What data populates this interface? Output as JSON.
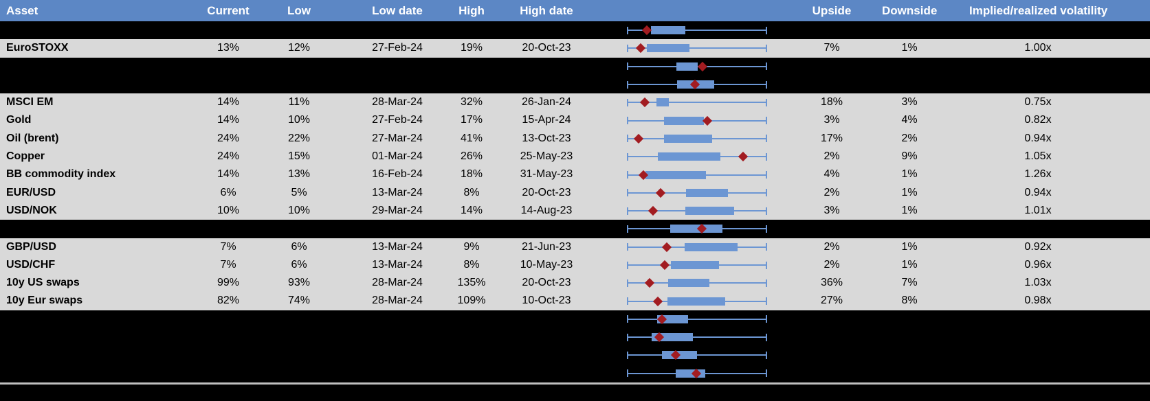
{
  "header": {
    "columns": [
      "Asset",
      "Current",
      "Low",
      "Low date",
      "High",
      "High date",
      "Upside",
      "Downside",
      "Implied/realized volatility"
    ]
  },
  "colors": {
    "header_bg": "#5c87c5",
    "header_text": "#ffffff",
    "row_light_bg": "#d9d9d9",
    "row_dark_bg": "#000000",
    "body_text": "#000000",
    "box_blue": "#6c96d3",
    "marker_red": "#a21c21",
    "divider_gray": "#bfbfbf"
  },
  "chart_data": {
    "type": "table",
    "columns": [
      "Asset",
      "Current",
      "Low",
      "Low date",
      "High",
      "High date",
      "Boxplot",
      "Upside",
      "Downside",
      "Implied/realized volatility"
    ],
    "boxplot_units": "percent of whisker span (left cap = 0, right cap = 100); marker is the red diamond position",
    "rows": [
      {
        "kind": "spacer",
        "asset": "",
        "current": "",
        "low": "",
        "low_date": "",
        "high": "",
        "high_date": "",
        "upside": "",
        "downside": "",
        "implied_realized": "",
        "box": {
          "whisker_lo_pct": 0,
          "box_lo_pct": 17.2,
          "box_hi_pct": 41.7,
          "whisker_hi_pct": 100,
          "marker_pct": 14.2
        }
      },
      {
        "kind": "data",
        "asset": "EuroSTOXX",
        "current": "13%",
        "low": "12%",
        "low_date": "27-Feb-24",
        "high": "19%",
        "high_date": "20-Oct-23",
        "upside": "7%",
        "downside": "1%",
        "implied_realized": "1.00x",
        "box": {
          "whisker_lo_pct": 0,
          "box_lo_pct": 14.2,
          "box_hi_pct": 44.6,
          "whisker_hi_pct": 100,
          "marker_pct": 9.8
        }
      },
      {
        "kind": "spacer",
        "asset": "",
        "current": "",
        "low": "",
        "low_date": "",
        "high": "",
        "high_date": "",
        "upside": "",
        "downside": "",
        "implied_realized": "",
        "box": {
          "whisker_lo_pct": 0,
          "box_lo_pct": 35.3,
          "box_hi_pct": 50.5,
          "whisker_hi_pct": 100,
          "marker_pct": 53.9
        }
      },
      {
        "kind": "spacer",
        "asset": "",
        "current": "",
        "low": "",
        "low_date": "",
        "high": "",
        "high_date": "",
        "upside": "",
        "downside": "",
        "implied_realized": "",
        "box": {
          "whisker_lo_pct": 0,
          "box_lo_pct": 35.8,
          "box_hi_pct": 62.3,
          "whisker_hi_pct": 100,
          "marker_pct": 48.5
        }
      },
      {
        "kind": "data",
        "asset": "MSCI EM",
        "current": "14%",
        "low": "11%",
        "low_date": "28-Mar-24",
        "high": "32%",
        "high_date": "26-Jan-24",
        "upside": "18%",
        "downside": "3%",
        "implied_realized": "0.75x",
        "box": {
          "whisker_lo_pct": 0,
          "box_lo_pct": 21.1,
          "box_hi_pct": 29.9,
          "whisker_hi_pct": 100,
          "marker_pct": 12.7
        }
      },
      {
        "kind": "data",
        "asset": "Gold",
        "current": "14%",
        "low": "10%",
        "low_date": "27-Feb-24",
        "high": "17%",
        "high_date": "15-Apr-24",
        "upside": "3%",
        "downside": "4%",
        "implied_realized": "0.82x",
        "box": {
          "whisker_lo_pct": 0,
          "box_lo_pct": 26.5,
          "box_hi_pct": 54.9,
          "whisker_hi_pct": 100,
          "marker_pct": 57.4
        }
      },
      {
        "kind": "data",
        "asset": "Oil (brent)",
        "current": "24%",
        "low": "22%",
        "low_date": "27-Mar-24",
        "high": "41%",
        "high_date": "13-Oct-23",
        "upside": "17%",
        "downside": "2%",
        "implied_realized": "0.94x",
        "box": {
          "whisker_lo_pct": 0,
          "box_lo_pct": 26.5,
          "box_hi_pct": 60.8,
          "whisker_hi_pct": 100,
          "marker_pct": 8.3
        }
      },
      {
        "kind": "data",
        "asset": "Copper",
        "current": "24%",
        "low": "15%",
        "low_date": "01-Mar-24",
        "high": "26%",
        "high_date": "25-May-23",
        "upside": "2%",
        "downside": "9%",
        "implied_realized": "1.05x",
        "box": {
          "whisker_lo_pct": 0,
          "box_lo_pct": 22.1,
          "box_hi_pct": 66.7,
          "whisker_hi_pct": 100,
          "marker_pct": 82.8
        }
      },
      {
        "kind": "data",
        "asset": "BB commodity index",
        "current": "14%",
        "low": "13%",
        "low_date": "16-Feb-24",
        "high": "18%",
        "high_date": "31-May-23",
        "upside": "4%",
        "downside": "1%",
        "implied_realized": "1.26x",
        "box": {
          "whisker_lo_pct": 0,
          "box_lo_pct": 13.2,
          "box_hi_pct": 56.4,
          "whisker_hi_pct": 100,
          "marker_pct": 11.8
        }
      },
      {
        "kind": "data",
        "asset": "EUR/USD",
        "current": "6%",
        "low": "5%",
        "low_date": "13-Mar-24",
        "high": "8%",
        "high_date": "20-Oct-23",
        "upside": "2%",
        "downside": "1%",
        "implied_realized": "0.94x",
        "box": {
          "whisker_lo_pct": 0,
          "box_lo_pct": 42.2,
          "box_hi_pct": 72.1,
          "whisker_hi_pct": 100,
          "marker_pct": 24.0
        }
      },
      {
        "kind": "data",
        "asset": "USD/NOK",
        "current": "10%",
        "low": "10%",
        "low_date": "29-Mar-24",
        "high": "14%",
        "high_date": "14-Aug-23",
        "upside": "3%",
        "downside": "1%",
        "implied_realized": "1.01x",
        "box": {
          "whisker_lo_pct": 0,
          "box_lo_pct": 41.7,
          "box_hi_pct": 76.5,
          "whisker_hi_pct": 100,
          "marker_pct": 18.6
        }
      },
      {
        "kind": "spacer",
        "asset": "",
        "current": "",
        "low": "",
        "low_date": "",
        "high": "",
        "high_date": "",
        "upside": "",
        "downside": "",
        "implied_realized": "",
        "box": {
          "whisker_lo_pct": 0,
          "box_lo_pct": 30.9,
          "box_hi_pct": 68.1,
          "whisker_hi_pct": 100,
          "marker_pct": 53.4
        }
      },
      {
        "kind": "data",
        "asset": "GBP/USD",
        "current": "7%",
        "low": "6%",
        "low_date": "13-Mar-24",
        "high": "9%",
        "high_date": "21-Jun-23",
        "upside": "2%",
        "downside": "1%",
        "implied_realized": "0.92x",
        "box": {
          "whisker_lo_pct": 0,
          "box_lo_pct": 41.2,
          "box_hi_pct": 78.9,
          "whisker_hi_pct": 100,
          "marker_pct": 28.4
        }
      },
      {
        "kind": "data",
        "asset": "USD/CHF",
        "current": "7%",
        "low": "6%",
        "low_date": "13-Mar-24",
        "high": "8%",
        "high_date": "10-May-23",
        "upside": "2%",
        "downside": "1%",
        "implied_realized": "0.96x",
        "box": {
          "whisker_lo_pct": 0,
          "box_lo_pct": 31.4,
          "box_hi_pct": 65.7,
          "whisker_hi_pct": 100,
          "marker_pct": 27.0
        }
      },
      {
        "kind": "data",
        "asset": "10y US swaps",
        "current": "99%",
        "low": "93%",
        "low_date": "28-Mar-24",
        "high": "135%",
        "high_date": "20-Oct-23",
        "upside": "36%",
        "downside": "7%",
        "implied_realized": "1.03x",
        "box": {
          "whisker_lo_pct": 0,
          "box_lo_pct": 29.4,
          "box_hi_pct": 58.8,
          "whisker_hi_pct": 100,
          "marker_pct": 16.2
        }
      },
      {
        "kind": "data",
        "asset": "10y Eur swaps",
        "current": "82%",
        "low": "74%",
        "low_date": "28-Mar-24",
        "high": "109%",
        "high_date": "10-Oct-23",
        "upside": "27%",
        "downside": "8%",
        "implied_realized": "0.98x",
        "box": {
          "whisker_lo_pct": 0,
          "box_lo_pct": 28.9,
          "box_hi_pct": 70.1,
          "whisker_hi_pct": 100,
          "marker_pct": 22.1
        }
      },
      {
        "kind": "spacer",
        "asset": "",
        "current": "",
        "low": "",
        "low_date": "",
        "high": "",
        "high_date": "",
        "upside": "",
        "downside": "",
        "implied_realized": "",
        "box": {
          "whisker_lo_pct": 0,
          "box_lo_pct": 21.6,
          "box_hi_pct": 43.6,
          "whisker_hi_pct": 100,
          "marker_pct": 25.0
        }
      },
      {
        "kind": "spacer",
        "asset": "",
        "current": "",
        "low": "",
        "low_date": "",
        "high": "",
        "high_date": "",
        "upside": "",
        "downside": "",
        "implied_realized": "",
        "box": {
          "whisker_lo_pct": 0,
          "box_lo_pct": 17.6,
          "box_hi_pct": 47.1,
          "whisker_hi_pct": 100,
          "marker_pct": 23.0
        }
      },
      {
        "kind": "spacer",
        "asset": "",
        "current": "",
        "low": "",
        "low_date": "",
        "high": "",
        "high_date": "",
        "upside": "",
        "downside": "",
        "implied_realized": "",
        "box": {
          "whisker_lo_pct": 0,
          "box_lo_pct": 25.0,
          "box_hi_pct": 50.0,
          "whisker_hi_pct": 100,
          "marker_pct": 34.8
        }
      },
      {
        "kind": "spacer",
        "asset": "",
        "current": "",
        "low": "",
        "low_date": "",
        "high": "",
        "high_date": "",
        "upside": "",
        "downside": "",
        "implied_realized": "",
        "box": {
          "whisker_lo_pct": 0,
          "box_lo_pct": 34.8,
          "box_hi_pct": 55.9,
          "whisker_hi_pct": 100,
          "marker_pct": 49.5
        }
      }
    ]
  }
}
